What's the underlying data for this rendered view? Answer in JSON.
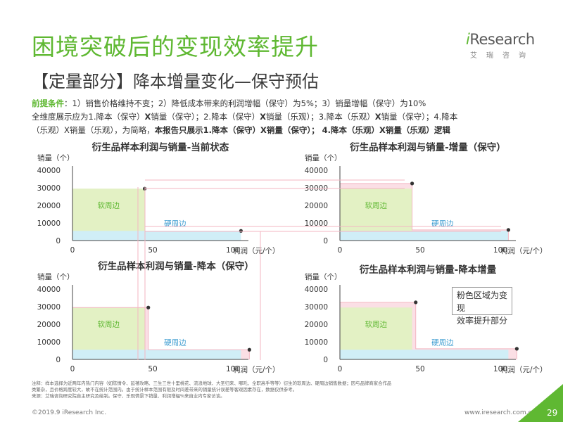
{
  "header": {
    "title": "困境突破后的变现效率提升",
    "subtitle": "【定量部分】降本增量变化—保守预估"
  },
  "logo": {
    "wordmark_i": "i",
    "wordmark_rest": "Research",
    "chinese": "艾瑞咨询"
  },
  "premise": {
    "label": "前提条件",
    "line1_rest": "：1）销售价格维持不变；2）降低成本带来的利润增幅（保守）为5%；3）销量增幅（保守）为10%",
    "line2a": "全维度展示应为1.降本（保守）",
    "line2b": "X",
    "line2c": "销量（保守）；2.降本（保守）",
    "line2d": "X",
    "line2e": "销量（乐观）；3.降本（乐观）",
    "line2f": "X",
    "line2g": "销量（保守）；4.降本",
    "line3a": "（乐观）X销量（乐观），为简略，",
    "line3b": "本报告只展示1.降本（保守）X销量（保守）； 4.降本（乐观）X销量（乐观）逻辑"
  },
  "callout": {
    "line1": "粉色区域为变现",
    "line2": "效率提升部分"
  },
  "colors": {
    "green": "#5fb832",
    "soft_fill": "#e3f1c4",
    "hard_fill": "#d0eef7",
    "pink_fill": "#fbdfe5",
    "pink_line": "#f3b6c2",
    "axis": "#444444"
  },
  "chart_data": [
    {
      "type": "area",
      "title": "衍生品样本利润与销量-当前状态",
      "ylabel": "销量（个）",
      "xlabel": "利润（元/个）",
      "xlim": [
        0,
        100
      ],
      "ylim": [
        0,
        40000
      ],
      "x_ticks": [
        0,
        50,
        100
      ],
      "y_ticks": [
        0,
        10000,
        20000,
        30000,
        40000
      ],
      "series": [
        {
          "name": "软周边",
          "x": 45,
          "y": 29500
        },
        {
          "name": "硬周边",
          "x": 105,
          "y": 5500
        }
      ],
      "increment": null
    },
    {
      "type": "area",
      "title": "衍生品样本利润与销量-增量（保守）",
      "ylabel": "销量（个）",
      "xlabel": "利润（元/个）",
      "xlim": [
        0,
        100
      ],
      "ylim": [
        0,
        40000
      ],
      "x_ticks": [
        0,
        50,
        100
      ],
      "y_ticks": [
        0,
        10000,
        20000,
        30000,
        40000
      ],
      "series": [
        {
          "name": "软周边",
          "x": 45,
          "y": 32450
        },
        {
          "name": "硬周边",
          "x": 105,
          "y": 6050
        }
      ],
      "increment": "volume"
    },
    {
      "type": "area",
      "title": "衍生品样本利润与销量-降本（保守）",
      "ylabel": "销量（个）",
      "xlabel": "利润（元/个）",
      "xlim": [
        0,
        100
      ],
      "ylim": [
        0,
        40000
      ],
      "x_ticks": [
        0,
        50,
        100
      ],
      "y_ticks": [
        0,
        10000,
        20000,
        30000,
        40000
      ],
      "series": [
        {
          "name": "软周边",
          "x": 47.25,
          "y": 29500
        },
        {
          "name": "硬周边",
          "x": 110.25,
          "y": 5500
        }
      ],
      "increment": "profit"
    },
    {
      "type": "area",
      "title": "衍生品样本利润与销量-降本增量",
      "ylabel": "销量（个）",
      "xlabel": "利润（元/个）",
      "xlim": [
        0,
        100
      ],
      "ylim": [
        0,
        40000
      ],
      "x_ticks": [
        0,
        50,
        100
      ],
      "y_ticks": [
        0,
        10000,
        20000,
        30000,
        40000
      ],
      "series": [
        {
          "name": "软周边",
          "x": 47.25,
          "y": 32450
        },
        {
          "name": "硬周边",
          "x": 110.25,
          "y": 6050
        }
      ],
      "increment": "both"
    }
  ],
  "footer": {
    "note1": "注释：样本选择为近两年内热门内容（如陈情令、延禧攻略、三生三世十里桃花、流浪地球、大圣归来、哪吒、全职高手等等）衍生的软周边、硬周边销售数据；因与品牌商家合作品",
    "note2": "类繁杂，且价格跨度较大，故不在统计范围内。由于统计样本范围有限及时间差带来的销量统计误差等客观因素存在，数据仅供参考。",
    "source": "来源：艾瑞咨询研究院自主研究及绘制。保守、乐观情景下销量、利润增幅%来自业内专家访谈。",
    "copyright": "©2019.9 iResearch Inc.",
    "url": "www.iresearch.com.cn",
    "page": "29"
  }
}
